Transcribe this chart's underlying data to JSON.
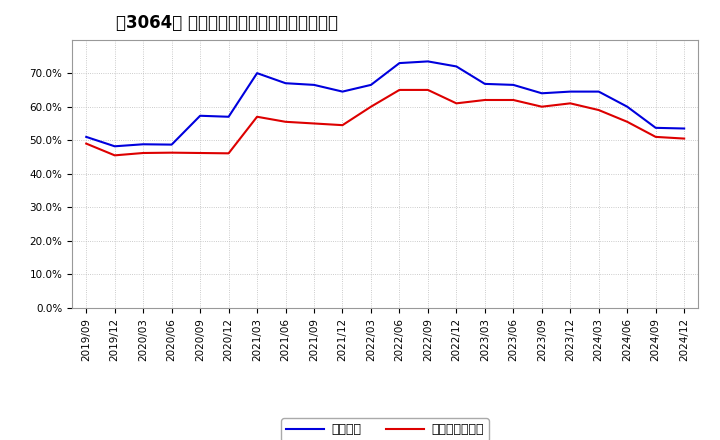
{
  "title": "［3064］ 固定比率、固定長期適合率の推移",
  "x_labels": [
    "2019/09",
    "2019/12",
    "2020/03",
    "2020/06",
    "2020/09",
    "2020/12",
    "2021/03",
    "2021/06",
    "2021/09",
    "2021/12",
    "2022/03",
    "2022/06",
    "2022/09",
    "2022/12",
    "2023/03",
    "2023/06",
    "2023/09",
    "2023/12",
    "2024/03",
    "2024/06",
    "2024/09",
    "2024/12"
  ],
  "fixed_ratio": [
    0.51,
    0.482,
    0.488,
    0.487,
    0.573,
    0.57,
    0.7,
    0.67,
    0.665,
    0.645,
    0.665,
    0.73,
    0.735,
    0.72,
    0.668,
    0.665,
    0.64,
    0.645,
    0.645,
    0.6,
    0.537,
    0.535
  ],
  "fixed_longterm_ratio": [
    0.49,
    0.455,
    0.462,
    0.463,
    0.462,
    0.461,
    0.57,
    0.555,
    0.55,
    0.545,
    0.6,
    0.65,
    0.65,
    0.61,
    0.62,
    0.62,
    0.6,
    0.61,
    0.59,
    0.555,
    0.51,
    0.505
  ],
  "line1_color": "#0000dd",
  "line2_color": "#dd0000",
  "line1_label": "固定比率",
  "line2_label": "固定長期適合率",
  "ylim": [
    0.0,
    0.8
  ],
  "yticks": [
    0.0,
    0.1,
    0.2,
    0.3,
    0.4,
    0.5,
    0.6,
    0.7
  ],
  "background_color": "#ffffff",
  "grid_color": "#bbbbbb",
  "title_fontsize": 12,
  "axis_fontsize": 7.5,
  "legend_fontsize": 9
}
